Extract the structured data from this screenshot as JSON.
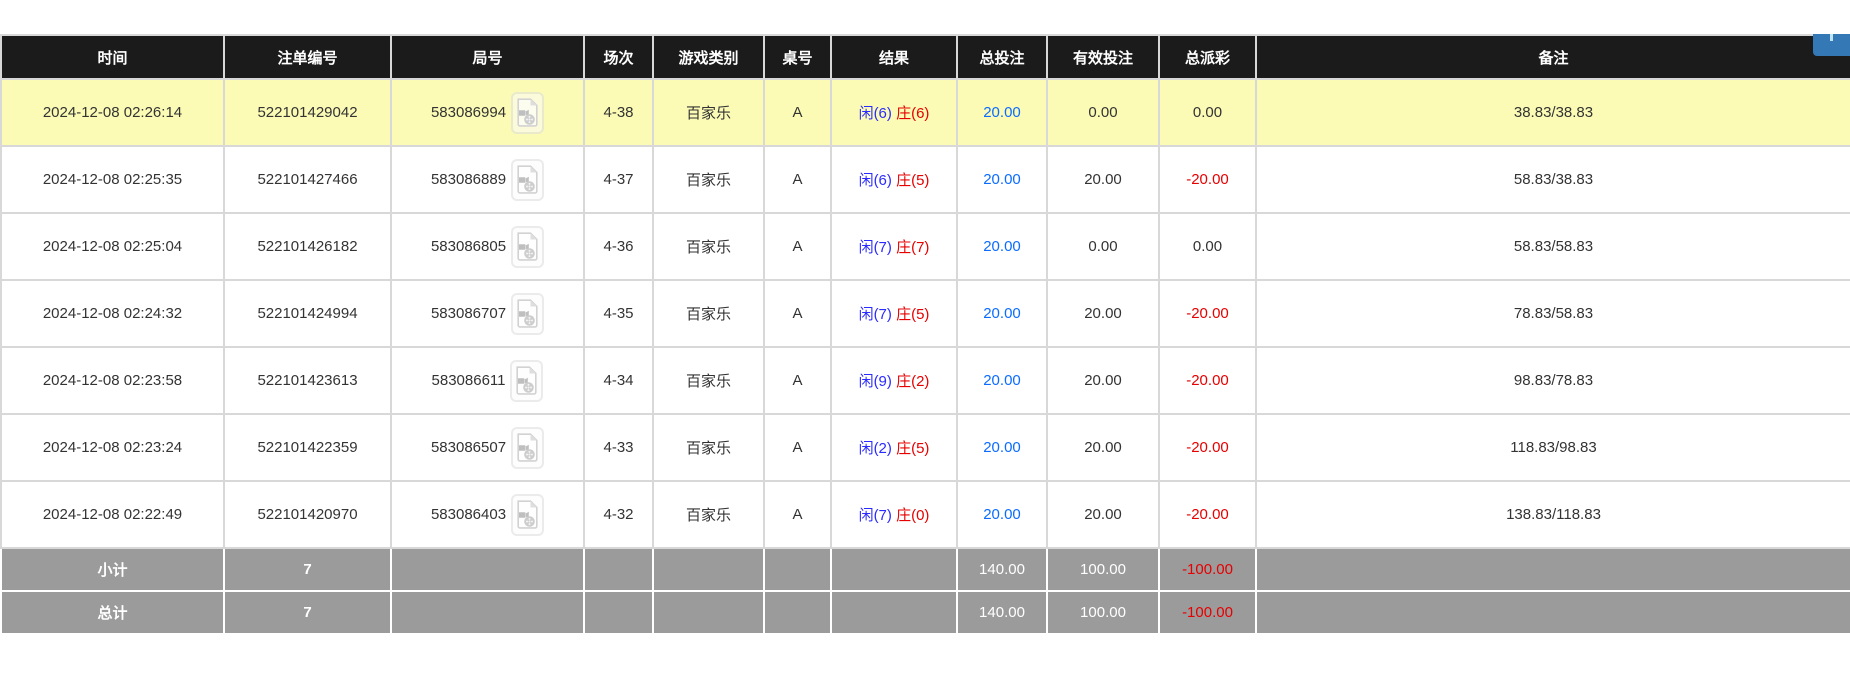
{
  "floating_button": {
    "color": "#3578b6"
  },
  "icons": {
    "video_icon": "film-file-icon"
  },
  "colors": {
    "header_bg": "#1b1b1b",
    "highlight_row": "#fbfbb6",
    "summary_bg": "#9b9b9b",
    "player_blue": "#2b2bff",
    "banker_red": "#e60000",
    "amount_blue": "#0b6cff",
    "negative_red": "#e60000"
  },
  "table": {
    "columns": [
      {
        "key": "time",
        "label": "时间"
      },
      {
        "key": "bet_id",
        "label": "注单编号"
      },
      {
        "key": "round_id",
        "label": "局号"
      },
      {
        "key": "session",
        "label": "场次"
      },
      {
        "key": "game_type",
        "label": "游戏类别"
      },
      {
        "key": "table_no",
        "label": "桌号"
      },
      {
        "key": "result",
        "label": "结果"
      },
      {
        "key": "total_bet",
        "label": "总投注"
      },
      {
        "key": "valid_bet",
        "label": "有效投注"
      },
      {
        "key": "payout",
        "label": "总派彩"
      },
      {
        "key": "remark",
        "label": "备注"
      }
    ],
    "rows": [
      {
        "highlight": true,
        "time": "2024-12-08 02:26:14",
        "bet_id": "522101429042",
        "round_id": "583086994",
        "session": "4-38",
        "game_type": "百家乐",
        "table_no": "A",
        "result_player": "闲(6)",
        "result_banker": "庄(6)",
        "total_bet": "20.00",
        "valid_bet": "0.00",
        "payout": "0.00",
        "remark": "38.83/38.83"
      },
      {
        "highlight": false,
        "time": "2024-12-08 02:25:35",
        "bet_id": "522101427466",
        "round_id": "583086889",
        "session": "4-37",
        "game_type": "百家乐",
        "table_no": "A",
        "result_player": "闲(6)",
        "result_banker": "庄(5)",
        "total_bet": "20.00",
        "valid_bet": "20.00",
        "payout": "-20.00",
        "remark": "58.83/38.83"
      },
      {
        "highlight": false,
        "time": "2024-12-08 02:25:04",
        "bet_id": "522101426182",
        "round_id": "583086805",
        "session": "4-36",
        "game_type": "百家乐",
        "table_no": "A",
        "result_player": "闲(7)",
        "result_banker": "庄(7)",
        "total_bet": "20.00",
        "valid_bet": "0.00",
        "payout": "0.00",
        "remark": "58.83/58.83"
      },
      {
        "highlight": false,
        "time": "2024-12-08 02:24:32",
        "bet_id": "522101424994",
        "round_id": "583086707",
        "session": "4-35",
        "game_type": "百家乐",
        "table_no": "A",
        "result_player": "闲(7)",
        "result_banker": "庄(5)",
        "total_bet": "20.00",
        "valid_bet": "20.00",
        "payout": "-20.00",
        "remark": "78.83/58.83"
      },
      {
        "highlight": false,
        "time": "2024-12-08 02:23:58",
        "bet_id": "522101423613",
        "round_id": "583086611",
        "session": "4-34",
        "game_type": "百家乐",
        "table_no": "A",
        "result_player": "闲(9)",
        "result_banker": "庄(2)",
        "total_bet": "20.00",
        "valid_bet": "20.00",
        "payout": "-20.00",
        "remark": "98.83/78.83"
      },
      {
        "highlight": false,
        "time": "2024-12-08 02:23:24",
        "bet_id": "522101422359",
        "round_id": "583086507",
        "session": "4-33",
        "game_type": "百家乐",
        "table_no": "A",
        "result_player": "闲(2)",
        "result_banker": "庄(5)",
        "total_bet": "20.00",
        "valid_bet": "20.00",
        "payout": "-20.00",
        "remark": "118.83/98.83"
      },
      {
        "highlight": false,
        "time": "2024-12-08 02:22:49",
        "bet_id": "522101420970",
        "round_id": "583086403",
        "session": "4-32",
        "game_type": "百家乐",
        "table_no": "A",
        "result_player": "闲(7)",
        "result_banker": "庄(0)",
        "total_bet": "20.00",
        "valid_bet": "20.00",
        "payout": "-20.00",
        "remark": "138.83/118.83"
      }
    ],
    "summary": [
      {
        "key": "subtotal",
        "label": "小计",
        "count": "7",
        "total_bet": "140.00",
        "valid_bet": "100.00",
        "payout": "-100.00"
      },
      {
        "key": "total",
        "label": "总计",
        "count": "7",
        "total_bet": "140.00",
        "valid_bet": "100.00",
        "payout": "-100.00"
      }
    ]
  }
}
